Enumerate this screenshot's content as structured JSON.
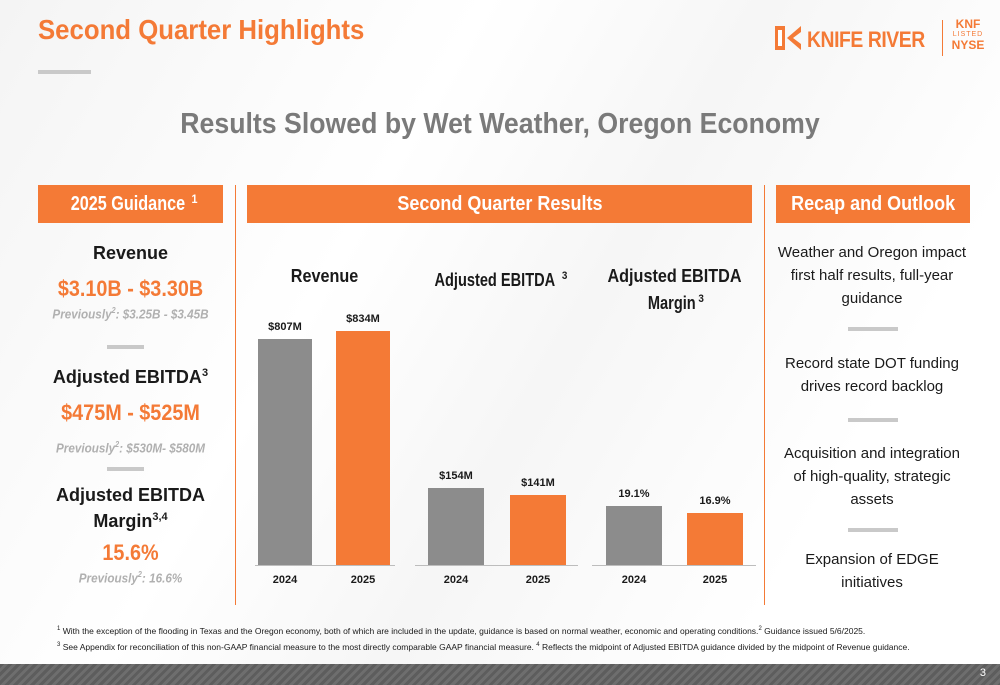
{
  "slide": {
    "title": "Second Quarter Highlights",
    "headline": "Results Slowed by Wet Weather, Oregon Economy",
    "page_number": "3"
  },
  "logo": {
    "name": "KNIFE RIVER",
    "ticker": "KNF",
    "listed": "LISTED",
    "exchange": "NYSE",
    "color": "#f47a36"
  },
  "guidance": {
    "header": "2025 Guidance",
    "header_sup": "1",
    "revenue": {
      "label": "Revenue",
      "value": "$3.10B - $3.30B",
      "prev_prefix": "Previously",
      "prev_sup": "2",
      "prev_value": ": $3.25B - $3.45B"
    },
    "ebitda": {
      "label": "Adjusted EBITDA",
      "label_sup": "3",
      "value": "$475M - $525M",
      "prev_prefix": "Previously",
      "prev_sup": "2",
      "prev_value": ": $530M- $580M"
    },
    "margin": {
      "label_line1": "Adjusted EBITDA",
      "label_line2": "Margin",
      "label_sup": "3,4",
      "value": "15.6%",
      "prev_prefix": "Previously",
      "prev_sup": "2",
      "prev_value": ": 16.6%"
    }
  },
  "results": {
    "header": "Second Quarter Results"
  },
  "chart_data": [
    {
      "type": "bar",
      "title": "Revenue",
      "categories": [
        "2024",
        "2025"
      ],
      "values": [
        807,
        834
      ],
      "value_labels": [
        "$807M",
        "$834M"
      ],
      "ylim": [
        0,
        1000
      ],
      "colors": [
        "#8c8c8c",
        "#f47a36"
      ]
    },
    {
      "type": "bar",
      "title": "Adjusted EBITDA",
      "title_sup": "3",
      "categories": [
        "2024",
        "2025"
      ],
      "values": [
        154,
        141
      ],
      "value_labels": [
        "$154M",
        "$141M"
      ],
      "ylim": [
        0,
        500
      ],
      "colors": [
        "#8c8c8c",
        "#f47a36"
      ]
    },
    {
      "type": "bar",
      "title": "Adjusted EBITDA",
      "title_line2": "Margin",
      "title_sup": "3",
      "categories": [
        "2024",
        "2025"
      ],
      "values": [
        19.1,
        16.9
      ],
      "value_labels": [
        "19.1%",
        "16.9%"
      ],
      "ylim": [
        0,
        60
      ],
      "colors": [
        "#8c8c8c",
        "#f47a36"
      ]
    }
  ],
  "recap": {
    "header": "Recap and Outlook",
    "items": [
      "Weather and Oregon impact first half results, full-year guidance",
      "Record state DOT funding drives record backlog",
      "Acquisition and integration of high-quality, strategic assets",
      "Expansion of EDGE initiatives"
    ]
  },
  "footnotes": {
    "f1_sup": "1",
    "f1_text": " With the exception of the flooding in Texas and the Oregon economy, both of which are included in the update, guidance is based on normal weather, economic and operating conditions.",
    "f1b_sup": "2",
    "f1b_text": " Guidance issued 5/6/2025.",
    "f2_sup": "3",
    "f2_text": " See Appendix for reconciliation of this non-GAAP financial measure to the most directly comparable GAAP financial measure. ",
    "f2b_sup": "4",
    "f2b_text": " Reflects the midpoint of Adjusted EBITDA guidance divided by the midpoint of Revenue guidance."
  }
}
